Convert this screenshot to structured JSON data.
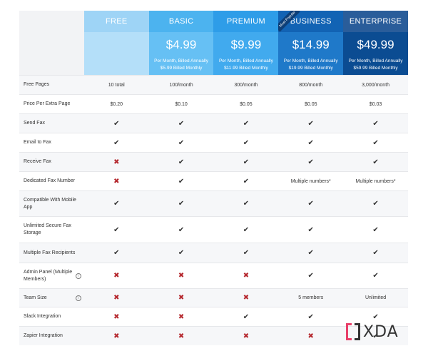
{
  "plans": [
    {
      "key": "free",
      "name": "FREE",
      "price": "",
      "annual": "",
      "monthly": ""
    },
    {
      "key": "basic",
      "name": "BASIC",
      "price": "$4.99",
      "annual": "Per Month, Billed Annually",
      "monthly": "$5.99 Billed Monthly"
    },
    {
      "key": "premium",
      "name": "PREMIUM",
      "price": "$9.99",
      "annual": "Per Month, Billed Annually",
      "monthly": "$11.99 Billed Monthly"
    },
    {
      "key": "business",
      "name": "BUSINESS",
      "price": "$14.99",
      "annual": "Per Month, Billed Annually",
      "monthly": "$19.99 Billed Monthly",
      "ribbon": "Most Popular"
    },
    {
      "key": "enterprise",
      "name": "ENTERPRISE",
      "price": "$49.99",
      "annual": "Per Month, Billed Annually",
      "monthly": "$59.99 Billed Monthly"
    }
  ],
  "rows": [
    {
      "feature": "Free Pages",
      "info": false,
      "cells": [
        "10 total",
        "100/month",
        "300/month",
        "800/month",
        "3,000/month"
      ]
    },
    {
      "feature": "Price Per Extra Page",
      "info": false,
      "cells": [
        "$0.20",
        "$0.10",
        "$0.05",
        "$0.05",
        "$0.03"
      ]
    },
    {
      "feature": "Send Fax",
      "info": false,
      "cells": [
        "check",
        "check",
        "check",
        "check",
        "check"
      ]
    },
    {
      "feature": "Email to Fax",
      "info": false,
      "cells": [
        "check",
        "check",
        "check",
        "check",
        "check"
      ]
    },
    {
      "feature": "Receive Fax",
      "info": false,
      "cells": [
        "cross",
        "check",
        "check",
        "check",
        "check"
      ]
    },
    {
      "feature": "Dedicated Fax Number",
      "info": false,
      "cells": [
        "cross",
        "check",
        "check",
        "Multiple numbers*",
        "Multiple numbers*"
      ]
    },
    {
      "feature": "Compatible With Mobile App",
      "info": false,
      "cells": [
        "check",
        "check",
        "check",
        "check",
        "check"
      ]
    },
    {
      "feature": "Unlimited Secure Fax Storage",
      "info": false,
      "cells": [
        "check",
        "check",
        "check",
        "check",
        "check"
      ]
    },
    {
      "feature": "Multiple Fax Recipients",
      "info": false,
      "cells": [
        "check",
        "check",
        "check",
        "check",
        "check"
      ]
    },
    {
      "feature": "Admin Panel (Multiple Members)",
      "info": true,
      "cells": [
        "cross",
        "cross",
        "cross",
        "check",
        "check"
      ]
    },
    {
      "feature": "Team Size",
      "info": true,
      "cells": [
        "cross",
        "cross",
        "cross",
        "5 members",
        "Unlimited"
      ]
    },
    {
      "feature": "Slack Integration",
      "info": false,
      "cells": [
        "cross",
        "cross",
        "check",
        "check",
        "check"
      ]
    },
    {
      "feature": "Zapier Integration",
      "info": false,
      "cells": [
        "cross",
        "cross",
        "cross",
        "cross",
        "check"
      ]
    }
  ],
  "row_heights": [
    27,
    27,
    27,
    27,
    27,
    27,
    36,
    37,
    28,
    36,
    26,
    27,
    27
  ],
  "icons": {
    "check": "check-icon",
    "cross": "cross-icon",
    "info": "info-icon"
  },
  "colors": {
    "check": "#333333",
    "cross": "#b5282e"
  },
  "logo": {
    "text": "XDA"
  }
}
